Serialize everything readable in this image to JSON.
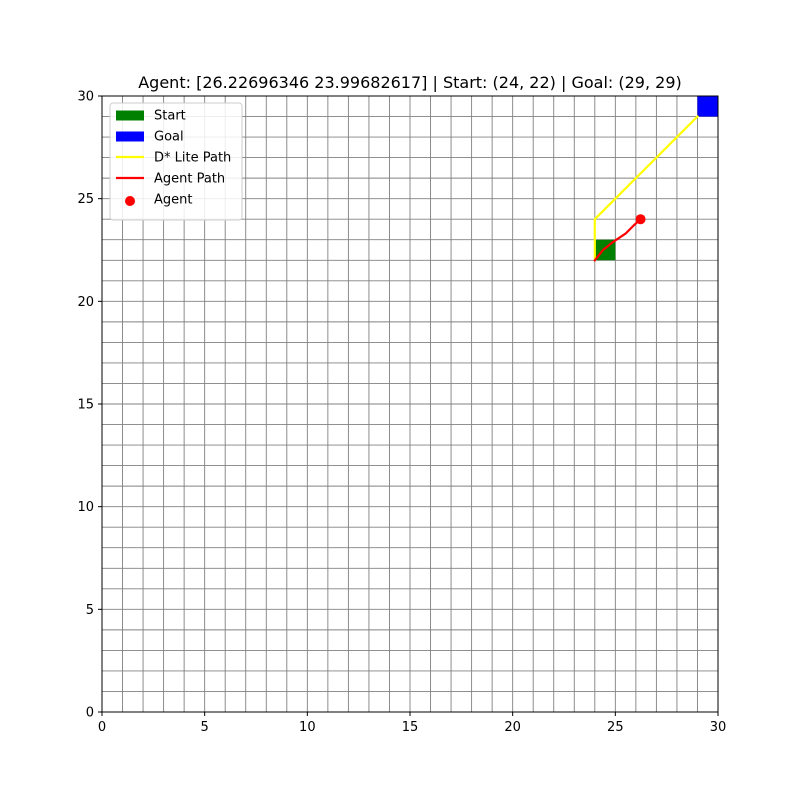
{
  "chart_data": {
    "type": "line",
    "title": "Agent: [26.22696346 23.99682617] | Start: (24, 22) | Goal: (29, 29)",
    "xlabel": "",
    "ylabel": "",
    "xlim": [
      0,
      30
    ],
    "ylim": [
      0,
      30
    ],
    "grid": true,
    "grid_step": 1,
    "x_ticks": [
      0,
      5,
      10,
      15,
      20,
      25,
      30
    ],
    "y_ticks": [
      0,
      5,
      10,
      15,
      20,
      25,
      30
    ],
    "x_tick_labels": [
      "0",
      "5",
      "10",
      "15",
      "20",
      "25",
      "30"
    ],
    "y_tick_labels": [
      "0",
      "5",
      "10",
      "15",
      "20",
      "25",
      "30"
    ],
    "legend_position": "top-left",
    "legend": [
      {
        "label": "Start",
        "marker": "square",
        "color": "#008000"
      },
      {
        "label": "Goal",
        "marker": "square",
        "color": "#0000ff"
      },
      {
        "label": "D* Lite Path",
        "marker": "line",
        "color": "#ffff00"
      },
      {
        "label": "Agent Path",
        "marker": "line",
        "color": "#ff0000"
      },
      {
        "label": "Agent",
        "marker": "circle",
        "color": "#ff0000"
      }
    ],
    "start": {
      "name": "Start",
      "cell": [
        24,
        22
      ],
      "color": "#008000"
    },
    "goal": {
      "name": "Goal",
      "cell": [
        29,
        29
      ],
      "color": "#0000ff"
    },
    "series": [
      {
        "name": "D* Lite Path",
        "color": "#ffff00",
        "x": [
          24,
          24,
          25,
          26,
          27,
          28,
          29
        ],
        "y": [
          22,
          24,
          25,
          26,
          27,
          28,
          29
        ]
      },
      {
        "name": "Agent Path",
        "color": "#ff0000",
        "x": [
          24.0,
          24.4,
          24.9,
          25.5,
          25.9,
          26.23
        ],
        "y": [
          22.0,
          22.5,
          22.9,
          23.3,
          23.7,
          24.0
        ]
      }
    ],
    "agent": {
      "name": "Agent",
      "x": 26.23,
      "y": 24.0,
      "color": "#ff0000"
    }
  }
}
